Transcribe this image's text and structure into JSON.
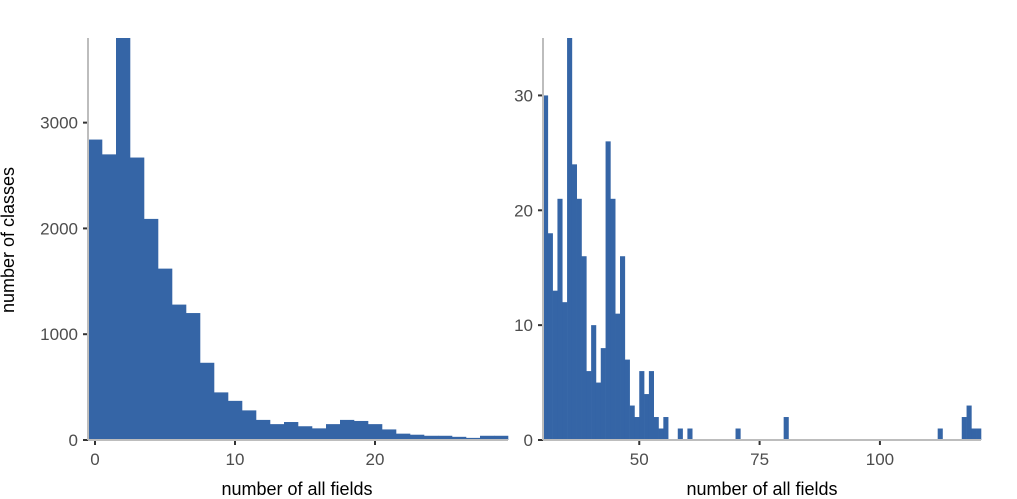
{
  "colors": {
    "bar": "#3565a6",
    "axis": "#bdbdbd",
    "tick": "#333333",
    "label": "#4d4d4d"
  },
  "chart_data": [
    {
      "type": "bar",
      "title": "",
      "xlabel": "number of all fields",
      "ylabel": "number of classes",
      "xlim": [
        -0.5,
        29.5
      ],
      "ylim": [
        0,
        3800
      ],
      "xticks": [
        0,
        10,
        20
      ],
      "yticks": [
        0,
        1000,
        2000,
        3000
      ],
      "grid": false,
      "x": [
        0,
        1,
        2,
        3,
        4,
        5,
        6,
        7,
        8,
        9,
        10,
        11,
        12,
        13,
        14,
        15,
        16,
        17,
        18,
        19,
        20,
        21,
        22,
        23,
        24,
        25,
        26,
        27,
        28,
        29
      ],
      "values": [
        2840,
        2700,
        3800,
        2670,
        2090,
        1620,
        1280,
        1200,
        730,
        450,
        370,
        280,
        190,
        150,
        170,
        130,
        110,
        150,
        190,
        180,
        150,
        100,
        60,
        50,
        40,
        40,
        30,
        20,
        40,
        40
      ]
    },
    {
      "type": "bar",
      "title": "",
      "xlabel": "number of all fields",
      "ylabel": "",
      "xlim": [
        30,
        121
      ],
      "ylim": [
        0,
        35
      ],
      "xticks": [
        50,
        75,
        100
      ],
      "yticks": [
        0,
        10,
        20,
        30
      ],
      "grid": false,
      "x": [
        30,
        31,
        32,
        33,
        34,
        35,
        36,
        37,
        38,
        39,
        40,
        41,
        42,
        43,
        44,
        45,
        46,
        47,
        48,
        49,
        50,
        51,
        52,
        53,
        54,
        55,
        56,
        57,
        58,
        59,
        60,
        61,
        62,
        63,
        64,
        65,
        66,
        67,
        68,
        69,
        70,
        71,
        72,
        73,
        74,
        75,
        76,
        77,
        78,
        79,
        80,
        81,
        82,
        83,
        84,
        85,
        86,
        87,
        88,
        89,
        90,
        91,
        92,
        93,
        94,
        95,
        96,
        97,
        98,
        99,
        100,
        101,
        102,
        103,
        104,
        105,
        106,
        107,
        108,
        109,
        110,
        111,
        112,
        113,
        114,
        115,
        116,
        117,
        118,
        119,
        120
      ],
      "values": [
        30,
        18,
        13,
        21,
        12,
        35,
        24,
        21,
        16,
        6,
        10,
        5,
        8,
        26,
        21,
        11,
        16,
        7,
        3,
        2,
        6,
        4,
        6,
        2,
        1,
        2,
        0,
        0,
        1,
        0,
        1,
        0,
        0,
        0,
        0,
        0,
        0,
        0,
        0,
        0,
        1,
        0,
        0,
        0,
        0,
        0,
        0,
        0,
        0,
        0,
        2,
        0,
        0,
        0,
        0,
        0,
        0,
        0,
        0,
        0,
        0,
        0,
        0,
        0,
        0,
        0,
        0,
        0,
        0,
        0,
        0,
        0,
        0,
        0,
        0,
        0,
        0,
        0,
        0,
        0,
        0,
        0,
        1,
        0,
        0,
        0,
        0,
        2,
        3,
        1,
        1
      ]
    }
  ]
}
